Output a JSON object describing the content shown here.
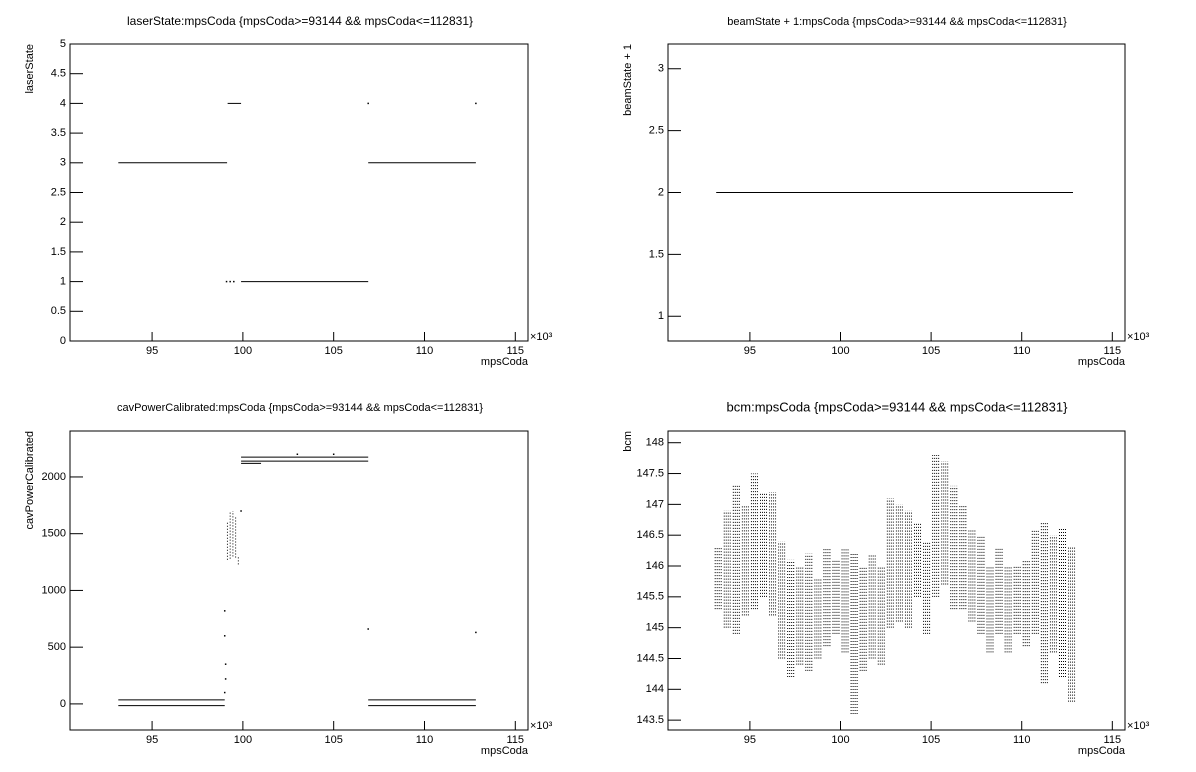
{
  "chart_data": [
    {
      "type": "line",
      "title": "laserState:mpsCoda {mpsCoda>=93144 && mpsCoda<=112831}",
      "xlabel": "mpsCoda",
      "ylabel": "laserState",
      "x_multiplier": "×10³",
      "xlim": [
        90.48,
        115.7
      ],
      "xticks": [
        95,
        100,
        105,
        110,
        115
      ],
      "ylim": [
        0,
        5
      ],
      "yticks": [
        0,
        0.5,
        1,
        1.5,
        2,
        2.5,
        3,
        3.5,
        4,
        4.5,
        5
      ],
      "color": "#000000",
      "x": [
        93.14,
        99.13,
        null,
        99.16,
        99.9,
        null,
        99.1,
        null,
        99.3,
        null,
        99.5,
        null,
        99.9,
        106.9,
        null,
        106.9,
        112.83,
        null,
        106.9,
        null,
        112.83
      ],
      "values": [
        3,
        3,
        null,
        4,
        4,
        null,
        1,
        null,
        1,
        null,
        1,
        null,
        1,
        1,
        null,
        3,
        3,
        null,
        4,
        null,
        4
      ]
    },
    {
      "type": "line",
      "title": "beamState + 1:mpsCoda {mpsCoda>=93144 && mpsCoda<=112831}",
      "xlabel": "mpsCoda",
      "ylabel": "beamState + 1",
      "x_multiplier": "×10³",
      "xlim": [
        90.48,
        115.7
      ],
      "xticks": [
        95,
        100,
        105,
        110,
        115
      ],
      "ylim": [
        0.8,
        3.2
      ],
      "yticks": [
        1,
        1.5,
        2,
        2.5,
        3
      ],
      "color": "#000000",
      "x": [
        93.14,
        112.83
      ],
      "values": [
        2,
        2
      ]
    },
    {
      "type": "line",
      "title": "cavPowerCalibrated:mpsCoda {mpsCoda>=93144 && mpsCoda<=112831}",
      "xlabel": "mpsCoda",
      "ylabel": "cavPowerCalibrated",
      "x_multiplier": "×10³",
      "xlim": [
        90.48,
        115.7
      ],
      "xticks": [
        95,
        100,
        105,
        110,
        115
      ],
      "ylim": [
        -230,
        2405
      ],
      "yticks": [
        0,
        500,
        1000,
        1500,
        2000
      ],
      "color": "#000000",
      "x": [
        93.14,
        99.0,
        null,
        93.14,
        99.0,
        null,
        99.0,
        null,
        99.0,
        null,
        99.05,
        null,
        99.05,
        null,
        99.0,
        null,
        99.15,
        99.15,
        null,
        99.3,
        99.3,
        null,
        99.45,
        99.45,
        null,
        99.6,
        99.6,
        null,
        99.75,
        99.75,
        null,
        99.9,
        null,
        99.9,
        106.9,
        null,
        99.9,
        106.9,
        null,
        99.9,
        101.0,
        null,
        103.0,
        null,
        105.0,
        null,
        106.9,
        null,
        112.83,
        null,
        106.9,
        112.83,
        null,
        106.9,
        112.83
      ],
      "values": [
        35,
        35,
        null,
        -15,
        -15,
        null,
        820,
        null,
        600,
        null,
        350,
        null,
        220,
        null,
        100,
        null,
        1270,
        1600,
        null,
        1280,
        1700,
        null,
        1300,
        1700,
        null,
        1290,
        1650,
        null,
        1230,
        1300,
        null,
        1700,
        null,
        2175,
        2175,
        null,
        2140,
        2140,
        null,
        2120,
        2120,
        null,
        2200,
        null,
        2200,
        null,
        660,
        null,
        630,
        null,
        35,
        35,
        null,
        -15,
        -15
      ]
    },
    {
      "type": "range",
      "title": "bcm:mpsCoda {mpsCoda>=93144 && mpsCoda<=112831}",
      "xlabel": "mpsCoda",
      "ylabel": "bcm",
      "x_multiplier": "×10³",
      "xlim": [
        90.48,
        115.7
      ],
      "xticks": [
        95,
        100,
        105,
        110,
        115
      ],
      "ylim": [
        143.34,
        148.19
      ],
      "yticks": [
        143.5,
        144,
        144.5,
        145,
        145.5,
        146,
        146.5,
        147,
        147.5,
        148
      ],
      "color": "#000000",
      "x": [
        93.25,
        93.75,
        94.25,
        94.75,
        95.25,
        95.75,
        96.25,
        96.75,
        97.25,
        97.75,
        98.25,
        98.75,
        99.25,
        99.75,
        100.25,
        100.75,
        101.25,
        101.75,
        102.25,
        102.75,
        103.25,
        103.75,
        104.25,
        104.75,
        105.25,
        105.75,
        106.25,
        106.75,
        107.25,
        107.75,
        108.25,
        108.75,
        109.25,
        109.75,
        110.25,
        110.75,
        111.25,
        111.75,
        112.25,
        112.75
      ],
      "low": [
        145.3,
        145.0,
        144.9,
        145.2,
        145.3,
        145.5,
        145.2,
        144.5,
        144.2,
        144.4,
        144.3,
        144.5,
        144.7,
        144.9,
        144.6,
        143.6,
        144.3,
        144.5,
        144.4,
        145.0,
        145.1,
        145.0,
        145.5,
        144.9,
        145.5,
        145.7,
        145.3,
        145.3,
        145.1,
        144.9,
        144.6,
        144.9,
        144.6,
        144.9,
        144.7,
        144.9,
        144.1,
        144.6,
        144.2,
        143.8
      ],
      "high": [
        146.3,
        146.9,
        147.3,
        147.0,
        147.5,
        147.2,
        147.2,
        146.4,
        146.1,
        146.0,
        146.2,
        145.8,
        146.3,
        146.1,
        146.3,
        146.2,
        146.0,
        146.2,
        146.0,
        147.1,
        147.0,
        146.9,
        146.7,
        146.4,
        147.8,
        147.7,
        147.3,
        147.0,
        146.6,
        146.5,
        146.0,
        146.3,
        146.0,
        146.0,
        146.1,
        146.6,
        146.7,
        146.5,
        146.6,
        146.3
      ]
    }
  ]
}
